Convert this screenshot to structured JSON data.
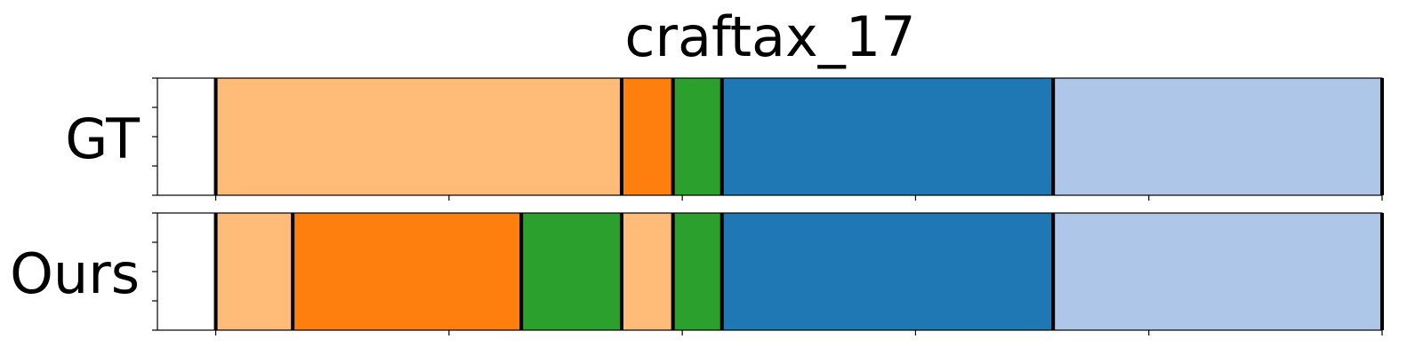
{
  "chart_data": {
    "type": "segment-timeline",
    "title": "craftax_17",
    "xlim": [
      -25,
      500
    ],
    "xticks": [
      0,
      100,
      200,
      300,
      400,
      500
    ],
    "xtick_labels_shown": false,
    "yticks_per_panel": 5,
    "rows": [
      {
        "name": "GT",
        "segments": [
          {
            "start": 0,
            "end": 174,
            "color": "#ffbb78"
          },
          {
            "start": 174,
            "end": 196,
            "color": "#ff7f0e"
          },
          {
            "start": 196,
            "end": 217,
            "color": "#2ca02c"
          },
          {
            "start": 217,
            "end": 359,
            "color": "#1f77b4"
          },
          {
            "start": 359,
            "end": 500,
            "color": "#aec7e8"
          }
        ]
      },
      {
        "name": "Ours",
        "segments": [
          {
            "start": 0,
            "end": 33,
            "color": "#ffbb78"
          },
          {
            "start": 33,
            "end": 131,
            "color": "#ff7f0e"
          },
          {
            "start": 131,
            "end": 174,
            "color": "#2ca02c"
          },
          {
            "start": 174,
            "end": 196,
            "color": "#ffbb78"
          },
          {
            "start": 196,
            "end": 217,
            "color": "#2ca02c"
          },
          {
            "start": 217,
            "end": 359,
            "color": "#1f77b4"
          },
          {
            "start": 359,
            "end": 500,
            "color": "#aec7e8"
          }
        ]
      }
    ]
  }
}
